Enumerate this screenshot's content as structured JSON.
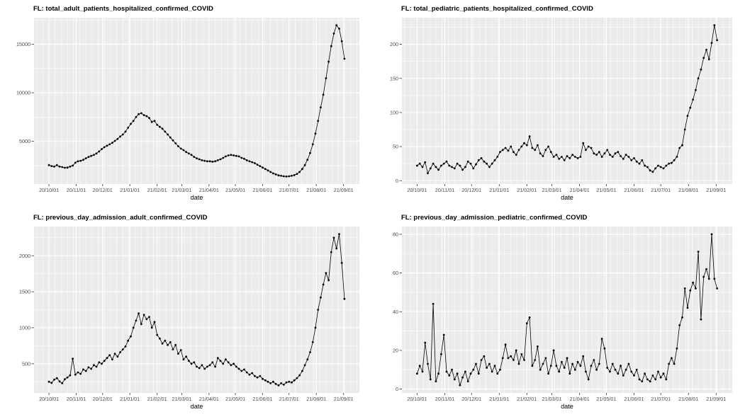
{
  "figure": {
    "background": "#ffffff",
    "panel_bg": "#ebebeb",
    "grid_color": "#ffffff",
    "point_color": "#000000",
    "line_color": "#000000",
    "tick_mark_color": "#333333",
    "tick_text_color": "#4d4d4d",
    "title_color": "#000000",
    "axis_title_color": "#000000"
  },
  "x_axis": {
    "label": "date",
    "tick_labels": [
      "20/10/01",
      "20/11/01",
      "20/12/01",
      "21/01/01",
      "21/02/01",
      "21/03/01",
      "21/04/01",
      "21/05/01",
      "21/06/01",
      "21/07/01",
      "21/08/01",
      "21/09/01"
    ],
    "tick_days": [
      0,
      31,
      61,
      92,
      123,
      151,
      182,
      212,
      243,
      273,
      304,
      335
    ]
  },
  "chart_data": [
    {
      "type": "line",
      "markers": true,
      "title": "FL: total_adult_patients_hospitalized_confirmed_COVID",
      "xlabel": "date",
      "start_date": "2020-10-01",
      "step_days": 3,
      "y_ticks": [
        5000,
        10000,
        15000
      ],
      "y_tick_labels": [
        "5000",
        "10000",
        "15000"
      ],
      "ylim": [
        600,
        17730
      ],
      "values": [
        2550,
        2450,
        2400,
        2550,
        2400,
        2350,
        2280,
        2300,
        2400,
        2500,
        2800,
        2950,
        3000,
        3100,
        3250,
        3400,
        3500,
        3600,
        3750,
        3950,
        4200,
        4400,
        4550,
        4700,
        4850,
        5050,
        5250,
        5500,
        5700,
        6000,
        6400,
        6800,
        7100,
        7500,
        7800,
        7900,
        7700,
        7600,
        7400,
        7000,
        7100,
        6700,
        6500,
        6300,
        6000,
        5700,
        5400,
        5100,
        4800,
        4500,
        4250,
        4100,
        3900,
        3750,
        3600,
        3400,
        3250,
        3150,
        3050,
        3000,
        2950,
        2950,
        2900,
        2950,
        3050,
        3150,
        3300,
        3450,
        3550,
        3600,
        3550,
        3500,
        3450,
        3300,
        3200,
        3050,
        2950,
        2850,
        2750,
        2600,
        2450,
        2300,
        2150,
        2000,
        1850,
        1700,
        1600,
        1500,
        1450,
        1400,
        1380,
        1400,
        1450,
        1520,
        1650,
        1850,
        2150,
        2550,
        3100,
        3800,
        4700,
        5800,
        7100,
        8500,
        9800,
        11500,
        13200,
        14800,
        16100,
        16950,
        16600,
        15300,
        13500
      ]
    },
    {
      "type": "line",
      "markers": true,
      "title": "FL: total_pediatric_patients_hospitalized_confirmed_COVID",
      "xlabel": "date",
      "start_date": "2020-10-01",
      "step_days": 3,
      "y_ticks": [
        0,
        50,
        100,
        150,
        200
      ],
      "y_tick_labels": [
        "0",
        "50",
        "100",
        "150",
        "200"
      ],
      "ylim": [
        -5,
        239
      ],
      "values": [
        22,
        25,
        20,
        27,
        11,
        18,
        25,
        20,
        16,
        22,
        25,
        28,
        22,
        20,
        18,
        25,
        22,
        16,
        20,
        28,
        25,
        18,
        24,
        30,
        33,
        28,
        25,
        20,
        25,
        30,
        35,
        42,
        45,
        48,
        44,
        50,
        42,
        38,
        45,
        50,
        55,
        52,
        65,
        48,
        45,
        52,
        40,
        36,
        45,
        50,
        42,
        35,
        38,
        32,
        35,
        30,
        36,
        33,
        38,
        35,
        33,
        35,
        55,
        45,
        50,
        48,
        40,
        38,
        42,
        35,
        40,
        45,
        38,
        35,
        40,
        42,
        36,
        32,
        38,
        35,
        30,
        33,
        28,
        25,
        30,
        22,
        20,
        15,
        13,
        18,
        22,
        20,
        18,
        22,
        25,
        26,
        30,
        35,
        48,
        52,
        75,
        95,
        107,
        119,
        133,
        150,
        163,
        180,
        192,
        178,
        202,
        228,
        206
      ]
    },
    {
      "type": "line",
      "markers": true,
      "title": "FL: previous_day_admission_adult_confirmed_COVID",
      "xlabel": "date",
      "start_date": "2020-10-01",
      "step_days": 3,
      "y_ticks": [
        500,
        1000,
        1500,
        2000
      ],
      "y_tick_labels": [
        "500",
        "1000",
        "1500",
        "2000"
      ],
      "ylim": [
        95,
        2405
      ],
      "values": [
        250,
        235,
        280,
        300,
        255,
        230,
        285,
        310,
        340,
        570,
        350,
        380,
        360,
        420,
        400,
        450,
        430,
        480,
        460,
        520,
        500,
        540,
        580,
        620,
        560,
        640,
        600,
        660,
        700,
        740,
        820,
        880,
        1000,
        1100,
        1200,
        1050,
        1180,
        1120,
        1150,
        1000,
        1080,
        900,
        850,
        780,
        820,
        760,
        800,
        700,
        760,
        640,
        690,
        560,
        600,
        540,
        500,
        520,
        460,
        440,
        480,
        430,
        460,
        480,
        520,
        460,
        580,
        540,
        500,
        560,
        520,
        480,
        500,
        460,
        430,
        400,
        420,
        380,
        350,
        370,
        330,
        310,
        330,
        290,
        270,
        250,
        230,
        250,
        220,
        200,
        230,
        210,
        240,
        250,
        240,
        270,
        300,
        340,
        400,
        480,
        560,
        660,
        800,
        1000,
        1250,
        1420,
        1600,
        1760,
        1660,
        2050,
        2250,
        2100,
        2300,
        1900,
        1400
      ]
    },
    {
      "type": "line",
      "markers": true,
      "title": "FL: previous_day_admission_pediatric_confirmed_COVID",
      "xlabel": "date",
      "start_date": "2020-10-01",
      "step_days": 3,
      "y_ticks": [
        0,
        20,
        40,
        60,
        80
      ],
      "y_tick_labels": [
        "0",
        "20",
        "40",
        "60",
        "80"
      ],
      "ylim": [
        -2,
        84
      ],
      "values": [
        8,
        12,
        9,
        24,
        13,
        5,
        44,
        4,
        8,
        18,
        28,
        9,
        7,
        10,
        5,
        8,
        2,
        6,
        9,
        4,
        8,
        10,
        13,
        8,
        15,
        17,
        11,
        13,
        9,
        12,
        8,
        10,
        16,
        23,
        16,
        17,
        15,
        20,
        13,
        18,
        15,
        34,
        37,
        12,
        15,
        22,
        10,
        13,
        16,
        8,
        12,
        20,
        12,
        9,
        14,
        11,
        16,
        8,
        13,
        10,
        14,
        12,
        17,
        9,
        5,
        12,
        15,
        10,
        13,
        26,
        21,
        11,
        9,
        13,
        10,
        8,
        12,
        7,
        10,
        13,
        9,
        7,
        10,
        5,
        4,
        8,
        5,
        4,
        7,
        5,
        9,
        6,
        8,
        5,
        13,
        16,
        13,
        21,
        33,
        37,
        52,
        42,
        51,
        55,
        52,
        71,
        36,
        58,
        62,
        57,
        80,
        57,
        52
      ]
    }
  ]
}
